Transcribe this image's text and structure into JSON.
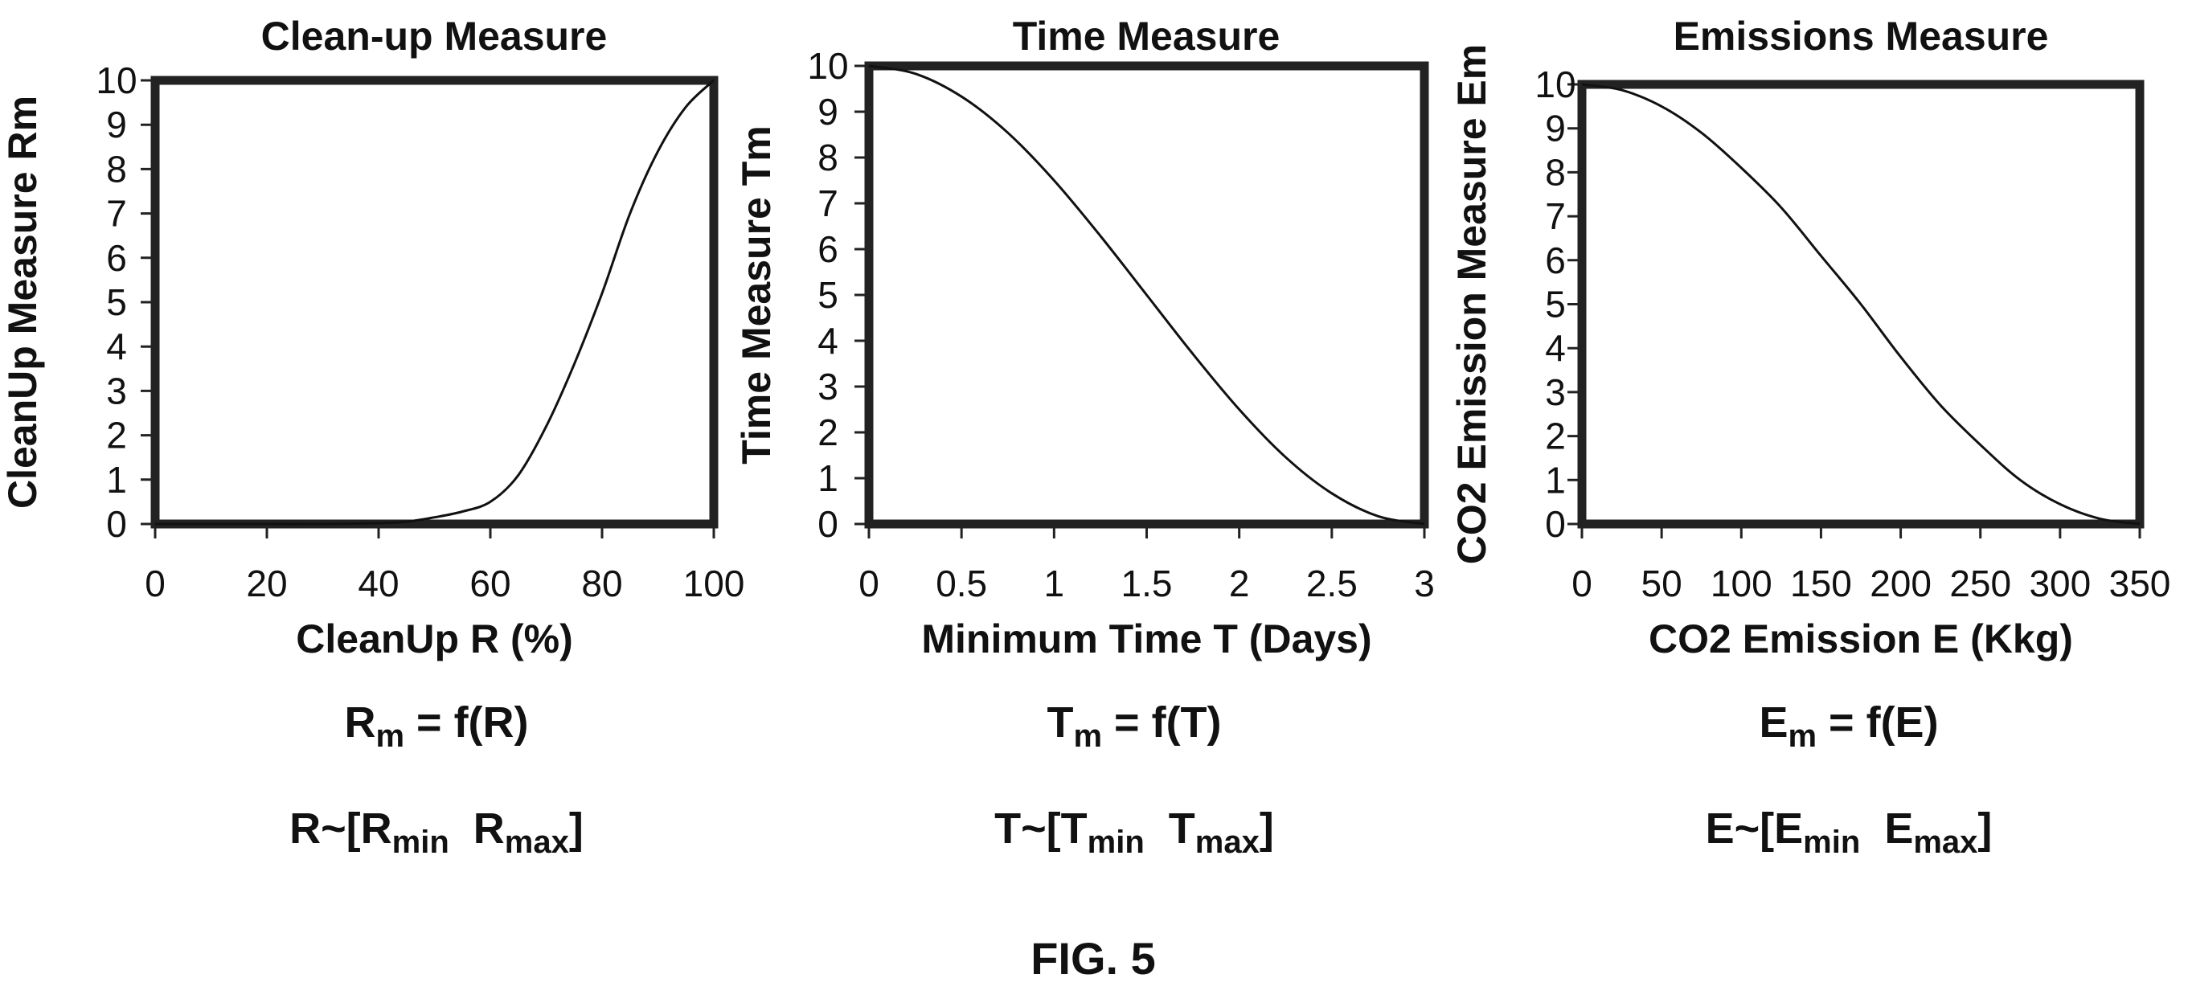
{
  "chart_data": [
    {
      "type": "line",
      "title": "Clean-up Measure",
      "xlabel": "CleanUp R (%)",
      "ylabel": "CleanUp Measure Rm",
      "xlim": [
        0,
        100
      ],
      "ylim": [
        0,
        10
      ],
      "xticks": [
        "0",
        "20",
        "40",
        "60",
        "80",
        "100"
      ],
      "yticks": [
        "0",
        "1",
        "2",
        "3",
        "4",
        "5",
        "6",
        "7",
        "8",
        "9",
        "10"
      ],
      "series": [
        {
          "x": [
            0,
            10,
            20,
            30,
            40,
            45,
            50,
            55,
            60,
            65,
            70,
            75,
            80,
            85,
            90,
            95,
            100
          ],
          "y": [
            0,
            0,
            0,
            0,
            0.02,
            0.05,
            0.15,
            0.28,
            0.5,
            1.1,
            2.2,
            3.6,
            5.2,
            7.0,
            8.4,
            9.4,
            10
          ]
        }
      ],
      "formula": {
        "lhs_base": "R",
        "lhs_sub": "m",
        "rhs": " = f(R)"
      },
      "range": {
        "prefix": "R~[",
        "min_base": "R",
        "min_sub": "min",
        "max_base": "R",
        "max_sub": "max",
        "suffix": "]"
      }
    },
    {
      "type": "line",
      "title": "Time Measure",
      "xlabel": "Minimum Time T (Days)",
      "ylabel": "Time Measure Tm",
      "xlim": [
        0,
        3
      ],
      "ylim": [
        0,
        10
      ],
      "xticks": [
        "0",
        "0.5",
        "1",
        "1.5",
        "2",
        "2.5",
        "3"
      ],
      "yticks": [
        "0",
        "1",
        "2",
        "3",
        "4",
        "5",
        "6",
        "7",
        "8",
        "9",
        "10"
      ],
      "series": [
        {
          "x": [
            0,
            0.25,
            0.5,
            0.75,
            1.0,
            1.25,
            1.5,
            1.75,
            2.0,
            2.25,
            2.5,
            2.75,
            3.0
          ],
          "y": [
            10,
            9.83,
            9.33,
            8.54,
            7.5,
            6.29,
            5.0,
            3.71,
            2.5,
            1.46,
            0.67,
            0.17,
            0
          ]
        }
      ],
      "formula": {
        "lhs_base": "T",
        "lhs_sub": "m",
        "rhs": " = f(T)"
      },
      "range": {
        "prefix": "T~[",
        "min_base": "T",
        "min_sub": "min",
        "max_base": "T",
        "max_sub": "max",
        "suffix": "]"
      }
    },
    {
      "type": "line",
      "title": "Emissions Measure",
      "xlabel": "CO2 Emission E (Kkg)",
      "ylabel": "CO2 Emission Measure Em",
      "xlim": [
        0,
        350
      ],
      "ylim": [
        0,
        10
      ],
      "xticks": [
        "0",
        "50",
        "100",
        "150",
        "200",
        "250",
        "300",
        "350"
      ],
      "yticks": [
        "0",
        "1",
        "2",
        "3",
        "4",
        "5",
        "6",
        "7",
        "8",
        "9",
        "10"
      ],
      "series": [
        {
          "x": [
            0,
            25,
            50,
            75,
            100,
            125,
            150,
            175,
            200,
            225,
            250,
            275,
            300,
            325,
            350
          ],
          "y": [
            10,
            9.87,
            9.5,
            8.9,
            8.1,
            7.2,
            6.1,
            5.0,
            3.8,
            2.7,
            1.8,
            1.0,
            0.45,
            0.12,
            0
          ]
        }
      ],
      "formula": {
        "lhs_base": "E",
        "lhs_sub": "m",
        "rhs": " = f(E)"
      },
      "range": {
        "prefix": "E~[",
        "min_base": "E",
        "min_sub": "min",
        "max_base": "E",
        "max_sub": "max",
        "suffix": "]"
      }
    }
  ],
  "figure_label": "FIG. 5"
}
